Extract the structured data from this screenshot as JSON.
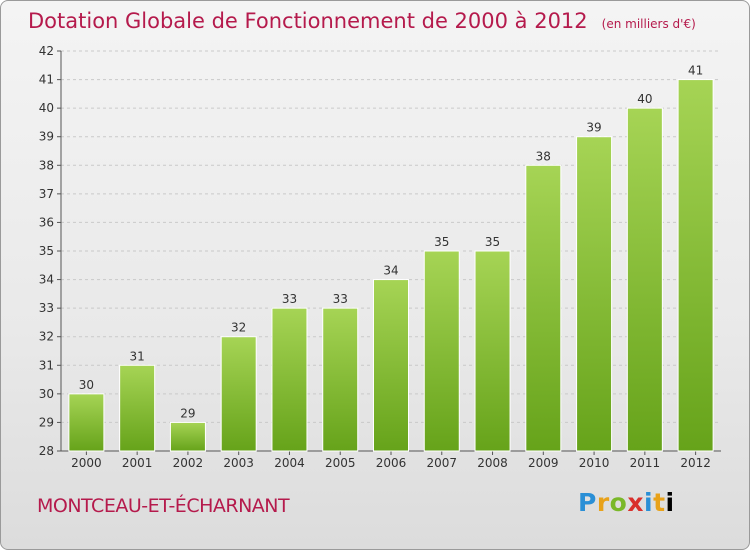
{
  "header": {
    "title": "Dotation Globale de Fonctionnement de 2000 à 2012",
    "unit": "(en milliers d'€)"
  },
  "footer": {
    "commune": "MONTCEAU-ET-ÉCHARNANT",
    "logo_letters": [
      "P",
      "r",
      "o",
      "x",
      "i",
      "t",
      "i"
    ]
  },
  "colors": {
    "bar_light": "#a6d455",
    "bar_dark": "#66a31a",
    "title": "#b51a4c"
  },
  "chart_data": {
    "type": "bar",
    "categories": [
      "2000",
      "2001",
      "2002",
      "2003",
      "2004",
      "2005",
      "2006",
      "2007",
      "2008",
      "2009",
      "2010",
      "2011",
      "2012"
    ],
    "values": [
      30,
      31,
      29,
      32,
      33,
      33,
      34,
      35,
      35,
      38,
      39,
      40,
      41
    ],
    "title": "Dotation Globale de Fonctionnement de 2000 à 2012",
    "subtitle": "(en milliers d'€)",
    "ylim": [
      28,
      42
    ],
    "yticks": [
      28,
      29,
      30,
      31,
      32,
      33,
      34,
      35,
      36,
      37,
      38,
      39,
      40,
      41,
      42
    ],
    "grid": true,
    "data_labels": true
  }
}
